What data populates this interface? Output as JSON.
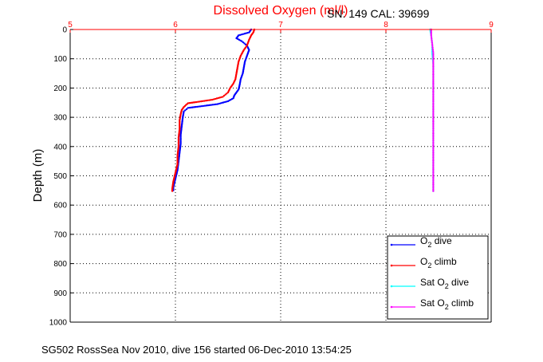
{
  "chart_data": {
    "type": "scatter",
    "title": "Dissolved Oxygen (ml/l)",
    "subtitle": "SN: 149  CAL: 39699",
    "ylabel": "Depth (m)",
    "caption": "SG502 RossSea Nov 2010, dive 156 started 06-Dec-2010 13:54:25",
    "xlim": [
      5,
      9
    ],
    "ylim": [
      0,
      1000
    ],
    "y_reversed": true,
    "x_axis_position": "top",
    "grid": true,
    "legend_placement": "bottom-right",
    "x_ticks": [
      "5",
      "6",
      "7",
      "8",
      "9"
    ],
    "y_ticks": [
      "0",
      "100",
      "200",
      "300",
      "400",
      "500",
      "600",
      "700",
      "800",
      "900",
      "1000"
    ],
    "series": [
      {
        "name": "O2 dive",
        "legend_main": "O",
        "legend_sub": "2",
        "legend_rest": " dive",
        "color": "#0000ff",
        "points": [
          [
            6.72,
            0
          ],
          [
            6.7,
            10
          ],
          [
            6.6,
            20
          ],
          [
            6.58,
            30
          ],
          [
            6.63,
            40
          ],
          [
            6.68,
            55
          ],
          [
            6.7,
            70
          ],
          [
            6.68,
            90
          ],
          [
            6.66,
            110
          ],
          [
            6.65,
            130
          ],
          [
            6.64,
            150
          ],
          [
            6.62,
            170
          ],
          [
            6.61,
            190
          ],
          [
            6.6,
            205
          ],
          [
            6.58,
            215
          ],
          [
            6.56,
            225
          ],
          [
            6.55,
            235
          ],
          [
            6.5,
            245
          ],
          [
            6.4,
            255
          ],
          [
            6.25,
            262
          ],
          [
            6.12,
            268
          ],
          [
            6.08,
            280
          ],
          [
            6.07,
            300
          ],
          [
            6.06,
            330
          ],
          [
            6.05,
            360
          ],
          [
            6.05,
            390
          ],
          [
            6.04,
            420
          ],
          [
            6.03,
            450
          ],
          [
            6.02,
            480
          ],
          [
            6.0,
            510
          ],
          [
            5.98,
            540
          ],
          [
            5.98,
            550
          ]
        ]
      },
      {
        "name": "O2 climb",
        "legend_main": "O",
        "legend_sub": "2",
        "legend_rest": " climb",
        "color": "#ff0000",
        "points": [
          [
            6.75,
            0
          ],
          [
            6.74,
            10
          ],
          [
            6.72,
            20
          ],
          [
            6.7,
            35
          ],
          [
            6.68,
            55
          ],
          [
            6.65,
            70
          ],
          [
            6.62,
            90
          ],
          [
            6.6,
            110
          ],
          [
            6.59,
            130
          ],
          [
            6.58,
            150
          ],
          [
            6.57,
            170
          ],
          [
            6.55,
            185
          ],
          [
            6.52,
            200
          ],
          [
            6.5,
            215
          ],
          [
            6.45,
            230
          ],
          [
            6.35,
            240
          ],
          [
            6.2,
            248
          ],
          [
            6.12,
            252
          ],
          [
            6.1,
            258
          ],
          [
            6.08,
            265
          ],
          [
            6.06,
            275
          ],
          [
            6.05,
            290
          ],
          [
            6.04,
            310
          ],
          [
            6.04,
            340
          ],
          [
            6.03,
            370
          ],
          [
            6.03,
            400
          ],
          [
            6.02,
            430
          ],
          [
            6.02,
            460
          ],
          [
            6.0,
            490
          ],
          [
            5.98,
            520
          ],
          [
            5.97,
            545
          ],
          [
            5.97,
            552
          ]
        ]
      },
      {
        "name": "Sat O2 dive",
        "legend_main": "Sat O",
        "legend_sub": "2",
        "legend_rest": " dive",
        "color": "#00ffff",
        "points": [
          [
            8.42,
            0
          ],
          [
            8.43,
            20
          ],
          [
            8.44,
            50
          ],
          [
            8.44,
            80
          ],
          [
            8.45,
            120
          ],
          [
            8.45,
            200
          ],
          [
            8.45,
            280
          ],
          [
            8.45,
            350
          ],
          [
            8.45,
            420
          ],
          [
            8.45,
            500
          ],
          [
            8.45,
            552
          ]
        ]
      },
      {
        "name": "Sat O2 climb",
        "legend_main": "Sat O",
        "legend_sub": "2",
        "legend_rest": " climb",
        "color": "#ff00ff",
        "points": [
          [
            8.43,
            0
          ],
          [
            8.43,
            20
          ],
          [
            8.44,
            50
          ],
          [
            8.45,
            80
          ],
          [
            8.45,
            120
          ],
          [
            8.45,
            200
          ],
          [
            8.45,
            280
          ],
          [
            8.45,
            350
          ],
          [
            8.45,
            420
          ],
          [
            8.45,
            500
          ],
          [
            8.45,
            552
          ]
        ]
      }
    ]
  }
}
